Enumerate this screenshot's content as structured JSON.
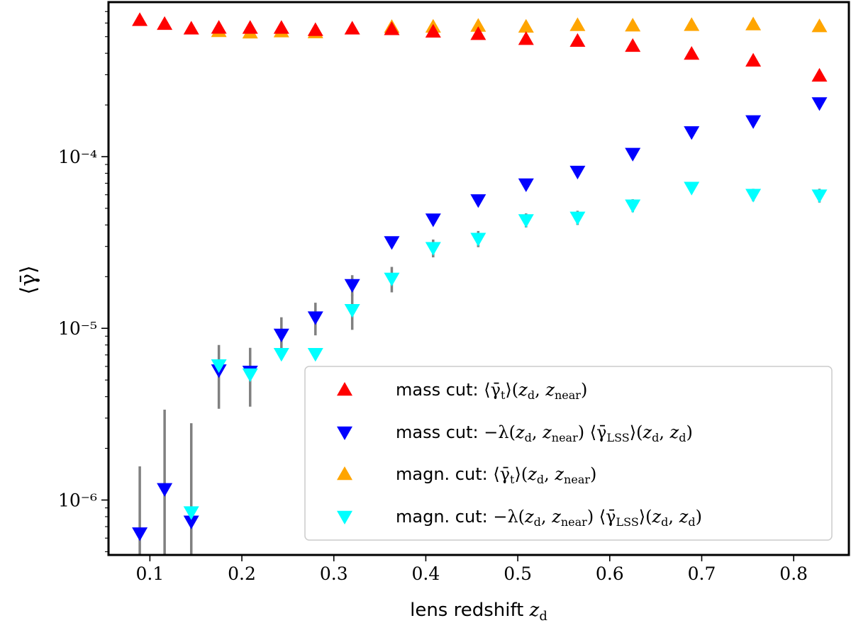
{
  "chart_data": {
    "type": "scatter",
    "xlabel": "lens redshift z_d",
    "ylabel": "⟨γ̄⟩",
    "xlim": [
      0.055,
      0.86
    ],
    "ylim_log10": [
      -6.32,
      -3.1
    ],
    "yscale": "log",
    "x_ticks": [
      0.1,
      0.2,
      0.3,
      0.4,
      0.5,
      0.6,
      0.7,
      0.8
    ],
    "x_tick_labels": [
      "0.1",
      "0.2",
      "0.3",
      "0.4",
      "0.5",
      "0.6",
      "0.7",
      "0.8"
    ],
    "y_ticks": [
      -6,
      -5,
      -4
    ],
    "y_tick_labels": [
      "10⁻⁶",
      "10⁻⁵",
      "10⁻⁴"
    ],
    "legend_position": "lower-right",
    "series": [
      {
        "name": "mass cut: ⟨γ̄t⟩(zd, znear)",
        "color": "#ff0000",
        "marker": "triangle-up",
        "x": [
          0.089,
          0.116,
          0.145,
          0.175,
          0.209,
          0.243,
          0.28,
          0.32,
          0.363,
          0.408,
          0.457,
          0.509,
          0.565,
          0.625,
          0.689,
          0.756,
          0.828
        ],
        "y": [
          0.000624,
          0.000592,
          0.000557,
          0.000563,
          0.000562,
          0.000562,
          0.000546,
          0.000557,
          0.000552,
          0.000534,
          0.000517,
          0.000484,
          0.000472,
          0.000441,
          0.000397,
          0.000362,
          0.000296
        ],
        "yerr": [
          0,
          0,
          0,
          0,
          0,
          0,
          0,
          0,
          0,
          0,
          0,
          0,
          0,
          0,
          0,
          0,
          0
        ]
      },
      {
        "name": "mass cut: −λ(zd, znear) ⟨γ̄LSS⟩(zd, zd)",
        "color": "#0000ff",
        "marker": "triangle-down",
        "x": [
          0.089,
          0.116,
          0.145,
          0.175,
          0.209,
          0.243,
          0.28,
          0.32,
          0.363,
          0.408,
          0.457,
          0.509,
          0.565,
          0.625,
          0.689,
          0.756,
          0.828
        ],
        "y": [
          6.4e-07,
          1.16e-06,
          7.5e-07,
          5.7e-06,
          5.6e-06,
          9.2e-06,
          1.16e-05,
          1.79e-05,
          3.18e-05,
          4.31e-05,
          5.58e-05,
          6.9e-05,
          8.18e-05,
          0.000104,
          0.000139,
          0.000161,
          0.000205
        ],
        "yerr": [
          9.3e-07,
          2.2e-06,
          2.05e-06,
          2.3e-06,
          2.1e-06,
          2.4e-06,
          2.5e-06,
          2.5e-06,
          1.2e-06,
          0,
          0,
          0,
          0,
          0,
          0,
          0,
          0
        ]
      },
      {
        "name": "magn. cut: ⟨γ̄t⟩(zd, znear)",
        "color": "#ffa500",
        "marker": "triangle-up",
        "x": [
          0.175,
          0.209,
          0.243,
          0.28,
          0.363,
          0.408,
          0.457,
          0.509,
          0.565,
          0.625,
          0.689,
          0.756,
          0.828
        ],
        "y": [
          0.000538,
          0.000528,
          0.000536,
          0.000529,
          0.000569,
          0.000571,
          0.000578,
          0.000571,
          0.000583,
          0.00058,
          0.000584,
          0.000589,
          0.000574
        ],
        "yerr": [
          0,
          0,
          0,
          0,
          0,
          0,
          0,
          0,
          0,
          0,
          0,
          0,
          0
        ]
      },
      {
        "name": "magn. cut: −λ(zd, znear) ⟨γ̄LSS⟩(zd, zd)",
        "color": "#00ffff",
        "marker": "triangle-down",
        "x": [
          0.145,
          0.175,
          0.209,
          0.243,
          0.28,
          0.32,
          0.363,
          0.408,
          0.457,
          0.509,
          0.565,
          0.625,
          0.689,
          0.756,
          0.828
        ],
        "y": [
          8.5e-07,
          6.1e-06,
          5.4e-06,
          7.1e-06,
          7.1e-06,
          1.28e-05,
          1.95e-05,
          2.94e-05,
          3.33e-05,
          4.27e-05,
          4.42e-05,
          5.2e-05,
          6.6e-05,
          6e-05,
          5.95e-05
        ],
        "yerr": [
          0,
          0,
          0,
          0,
          0,
          3e-06,
          3.3e-06,
          3.5e-06,
          3.6e-06,
          4e-06,
          4.2e-06,
          4.5e-06,
          5e-06,
          5e-06,
          5.5e-06
        ]
      }
    ]
  }
}
